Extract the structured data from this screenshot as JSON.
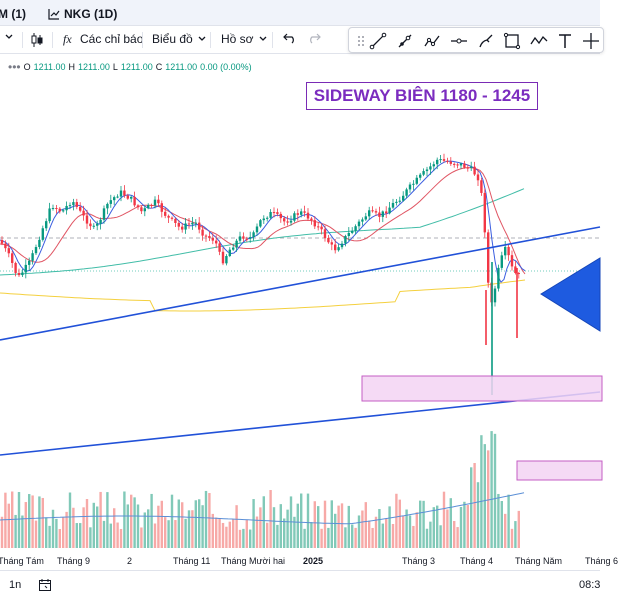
{
  "tabs": {
    "left_label": "M (1)",
    "symbol_label": "NKG (1D)"
  },
  "toolbar": {
    "indicators_label": "Các chỉ báo",
    "chart_label": "Biểu đồ",
    "profile_label": "Hồ sơ"
  },
  "drawing_tools": [
    "line-tool-icon",
    "ray-tool-icon",
    "pattern-tool-icon",
    "horizontal-line-icon",
    "brush-icon",
    "rectangle-icon",
    "zigzag-icon",
    "text-icon",
    "pin-icon"
  ],
  "legend": {
    "open_label": "O",
    "open": "1211.00",
    "high_label": "H",
    "high": "1211.00",
    "low_label": "L",
    "low": "1211.00",
    "close_label": "C",
    "close": "1211.00",
    "change": "0.00 (0.00%)"
  },
  "annotation": {
    "text": "SIDEWAY BIÊN 1180 - 1245"
  },
  "x_axis": {
    "labels": [
      "Tháng Tám",
      "Tháng 9",
      "2",
      "Tháng 11",
      "Tháng Mười hai",
      "2025",
      "Tháng 3",
      "Tháng 4",
      "Tháng Năm",
      "Tháng 6"
    ]
  },
  "statusbar": {
    "range_label": "1n",
    "time_label": "08:3"
  },
  "colors": {
    "up": "#089981",
    "down": "#f23645",
    "volume_up": "#81c9b8",
    "volume_down": "#f7a9a7",
    "trendline": "#2151d8",
    "zone_fill": "#f3d4f3",
    "zone_border": "#c45ec4",
    "annotation_text": "#7b2cbf",
    "ma_yellow": "#f4d03f",
    "ma_teal": "#42bda8",
    "ma_red": "#e05563",
    "ma_blue": "#3b5ee0"
  }
}
